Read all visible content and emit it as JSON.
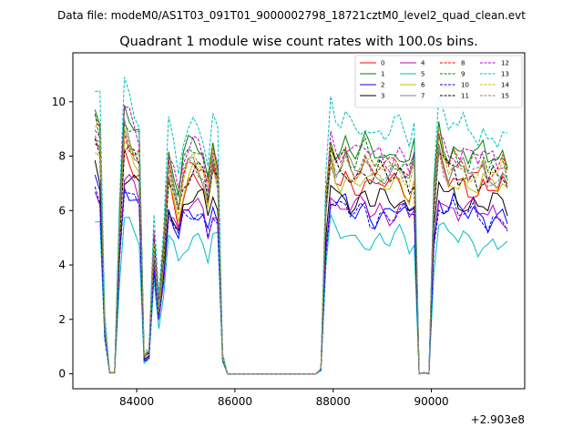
{
  "figure": {
    "suptitle": "Data file: modeM0/AS1T03_091T01_9000002798_18721cztM0_level2_quad_clean.evt",
    "title": "Quadrant 1 module wise count rates with 100.0s bins."
  },
  "chart_data": {
    "type": "line",
    "title": "Quadrant 1 module wise count rates with 100.0s bins.",
    "xlabel": "",
    "ylabel": "",
    "x_offset_label": "+2.903e8",
    "xlim": [
      82700,
      91900
    ],
    "ylim": [
      -0.55,
      11.8
    ],
    "xticks": [
      84000,
      86000,
      88000,
      90000
    ],
    "yticks": [
      0,
      2,
      4,
      6,
      8,
      10
    ],
    "grid": false,
    "legend": {
      "placement": "top-right",
      "columns": 4
    },
    "x": [
      83150,
      83250,
      83350,
      83450,
      83550,
      83650,
      83750,
      83850,
      83950,
      84050,
      84150,
      84250,
      84350,
      84450,
      84550,
      84650,
      84750,
      84850,
      84950,
      85050,
      85150,
      85250,
      85350,
      85450,
      85550,
      85650,
      85750,
      85850,
      85950,
      86050,
      86150,
      86250,
      86350,
      86450,
      86550,
      86650,
      86750,
      86850,
      86950,
      87050,
      87150,
      87250,
      87350,
      87450,
      87550,
      87650,
      87750,
      87850,
      87950,
      88050,
      88150,
      88250,
      88350,
      88450,
      88550,
      88650,
      88750,
      88850,
      88950,
      89050,
      89150,
      89250,
      89350,
      89450,
      89550,
      89650,
      89750,
      89850,
      89950,
      90050,
      90150,
      90250,
      90350,
      90450,
      90550,
      90650,
      90750,
      90850,
      90950,
      91050,
      91150,
      91250,
      91350,
      91450,
      91550
    ],
    "envelope": [
      1.0,
      0.95,
      0.2,
      0.005,
      0.005,
      0.6,
      1.0,
      0.97,
      0.93,
      0.9,
      0.07,
      0.09,
      0.55,
      0.28,
      0.5,
      0.85,
      0.78,
      0.7,
      0.82,
      0.86,
      0.88,
      0.87,
      0.84,
      0.74,
      0.88,
      0.82,
      0.07,
      0,
      0,
      0,
      0,
      0,
      0,
      0,
      0,
      0,
      0,
      0,
      0,
      0,
      0,
      0,
      0,
      0,
      0,
      0,
      0.02,
      0.68,
      0.93,
      0.87,
      0.86,
      0.89,
      0.85,
      0.84,
      0.86,
      0.88,
      0.84,
      0.83,
      0.86,
      0.84,
      0.83,
      0.85,
      0.86,
      0.84,
      0.8,
      0.86,
      0.0,
      0.005,
      0.0,
      0.7,
      0.95,
      0.89,
      0.85,
      0.88,
      0.84,
      0.86,
      0.83,
      0.85,
      0.82,
      0.85,
      0.81,
      0.84,
      0.82,
      0.84,
      0.8
    ],
    "series": [
      {
        "name": "0",
        "color": "#ff0000",
        "dash": "solid",
        "level": 8.2
      },
      {
        "name": "1",
        "color": "#008000",
        "dash": "solid",
        "level": 9.6
      },
      {
        "name": "2",
        "color": "#0000ff",
        "dash": "solid",
        "level": 7.0
      },
      {
        "name": "3",
        "color": "#000000",
        "dash": "solid",
        "level": 7.5
      },
      {
        "name": "4",
        "color": "#bf00bf",
        "dash": "solid",
        "level": 7.1
      },
      {
        "name": "5",
        "color": "#00bfbf",
        "dash": "solid",
        "level": 5.8
      },
      {
        "name": "6",
        "color": "#bfbf00",
        "dash": "solid",
        "level": 8.3
      },
      {
        "name": "7",
        "color": "#808080",
        "dash": "solid",
        "level": 8.8
      },
      {
        "name": "8",
        "color": "#ff0000",
        "dash": "dashed",
        "level": 9.0
      },
      {
        "name": "9",
        "color": "#008000",
        "dash": "dashed",
        "level": 9.3
      },
      {
        "name": "10",
        "color": "#0000ff",
        "dash": "dashed",
        "level": 6.9
      },
      {
        "name": "11",
        "color": "#000000",
        "dash": "dashed",
        "level": 8.6
      },
      {
        "name": "12",
        "color": "#bf00bf",
        "dash": "dashed",
        "level": 9.5
      },
      {
        "name": "13",
        "color": "#00bfbf",
        "dash": "dashed",
        "level": 10.6
      },
      {
        "name": "14",
        "color": "#bfbf00",
        "dash": "dashed",
        "level": 8.9
      },
      {
        "name": "15",
        "color": "#808080",
        "dash": "dashed",
        "level": 8.7
      }
    ]
  }
}
